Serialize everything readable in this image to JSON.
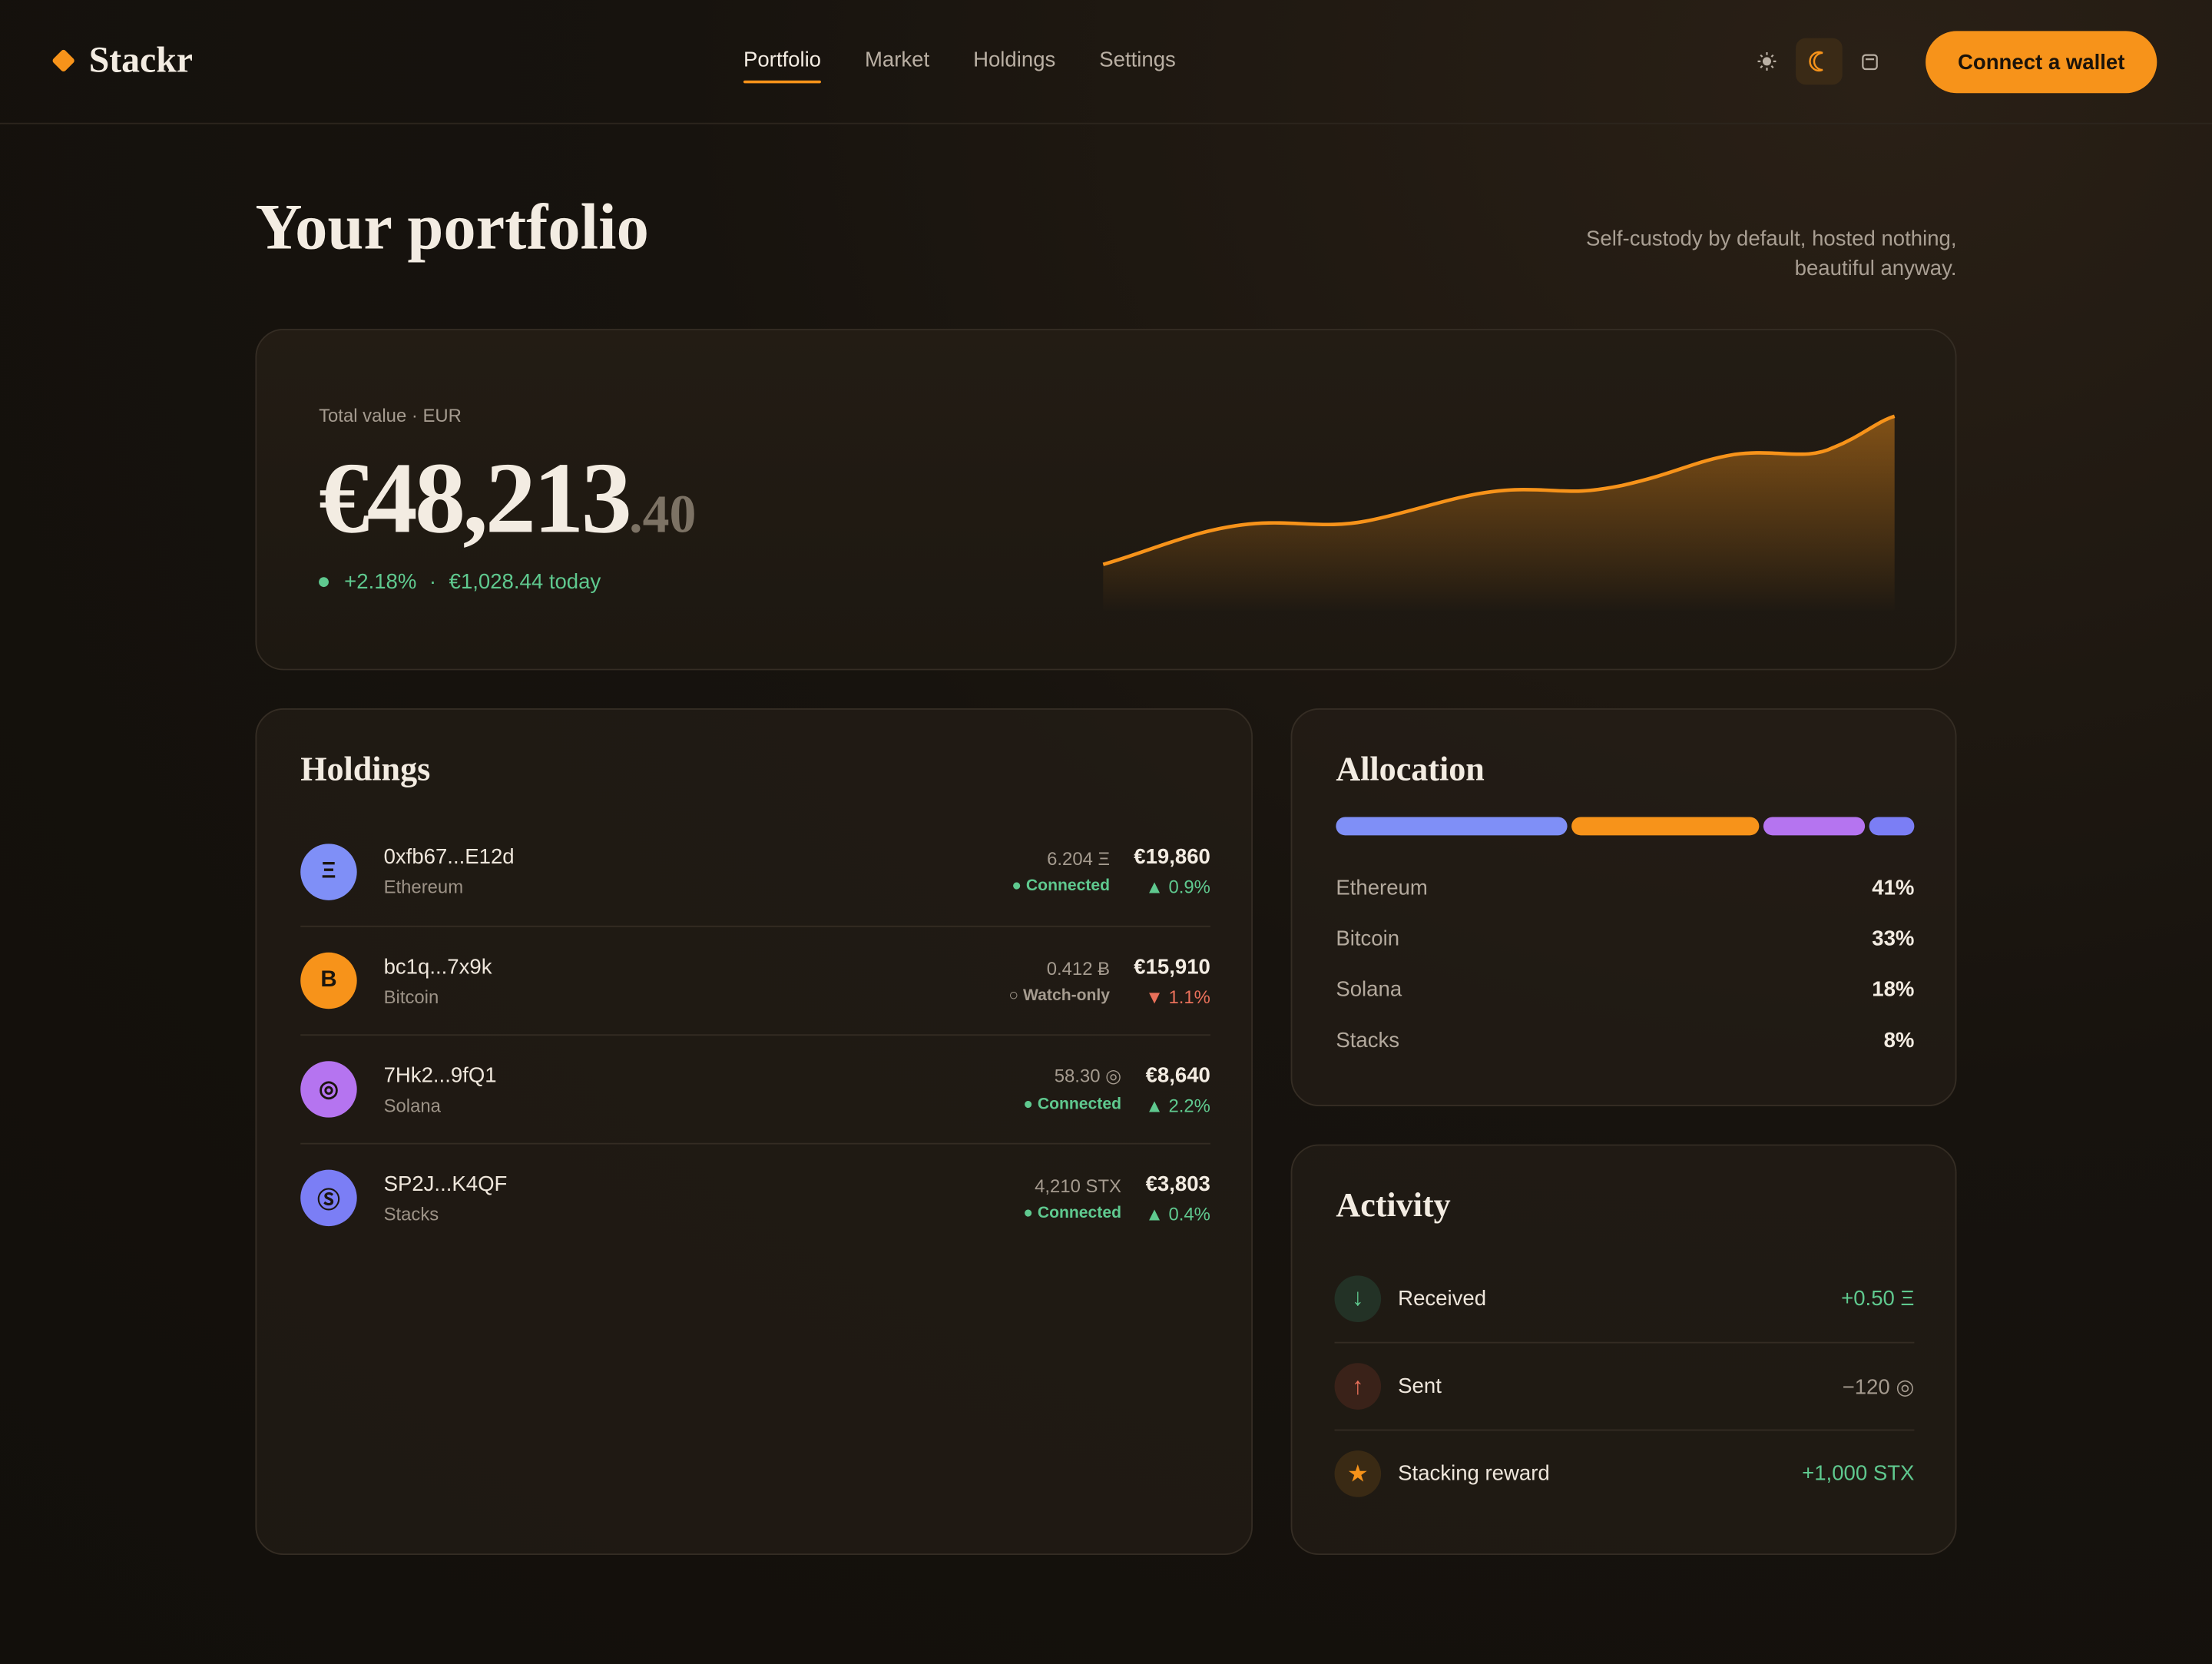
{
  "nav": {
    "brand": "Stackr",
    "links": [
      "Portfolio",
      "Market",
      "Holdings",
      "Settings"
    ],
    "active": 0,
    "cta": "Connect a wallet"
  },
  "header": {
    "title": "Your portfolio",
    "tagline": "Self-custody by default, hosted nothing, beautiful anyway."
  },
  "summary": {
    "label": "Total value · EUR",
    "value_main": "€48,213",
    "value_cents": ".40",
    "change": "+2.18%",
    "separator": "·",
    "today": "€1,028.44 today"
  },
  "holdings": {
    "title": "Holdings",
    "rows": [
      {
        "icon": "Ξ",
        "color": "#7f8ff7",
        "address": "0xfb67...E12d",
        "network": "Ethereum",
        "amount": "6.204 Ξ",
        "status": "● Connected",
        "connected": true,
        "value": "€19,860",
        "change": "▲ 0.9%",
        "up": true
      },
      {
        "icon": "B",
        "color": "#f7931a",
        "address": "bc1q...7x9k",
        "network": "Bitcoin",
        "amount": "0.412 Ƀ",
        "status": "○ Watch-only",
        "connected": false,
        "value": "€15,910",
        "change": "▼ 1.1%",
        "up": false
      },
      {
        "icon": "◎",
        "color": "#b574f0",
        "address": "7Hk2...9fQ1",
        "network": "Solana",
        "amount": "58.30 ◎",
        "status": "● Connected",
        "connected": true,
        "value": "€8,640",
        "change": "▲ 2.2%",
        "up": true
      },
      {
        "icon": "Ⓢ",
        "color": "#7b7ef5",
        "address": "SP2J...K4QF",
        "network": "Stacks",
        "amount": "4,210 STX",
        "status": "● Connected",
        "connected": true,
        "value": "€3,803",
        "change": "▲ 0.4%",
        "up": true
      }
    ]
  },
  "allocation": {
    "title": "Allocation",
    "items": [
      {
        "name": "Ethereum",
        "value": 41,
        "value_label": "41%",
        "color": "#7f8ff7"
      },
      {
        "name": "Bitcoin",
        "value": 33,
        "value_label": "33%",
        "color": "#f7931a"
      },
      {
        "name": "Solana",
        "value": 18,
        "value_label": "18%",
        "color": "#b574f0"
      },
      {
        "name": "Stacks",
        "value": 8,
        "value_label": "8%",
        "color": "#7b7ef5"
      }
    ]
  },
  "activity": {
    "title": "Activity",
    "rows": [
      {
        "icon": "↓",
        "kind": "in",
        "label": "Received",
        "amount": "+0.50 Ξ"
      },
      {
        "icon": "↑",
        "kind": "out",
        "label": "Sent",
        "amount": "−120 ◎"
      },
      {
        "icon": "★",
        "kind": "reward",
        "label": "Stacking reward",
        "amount": "+1,000 STX"
      }
    ]
  }
}
